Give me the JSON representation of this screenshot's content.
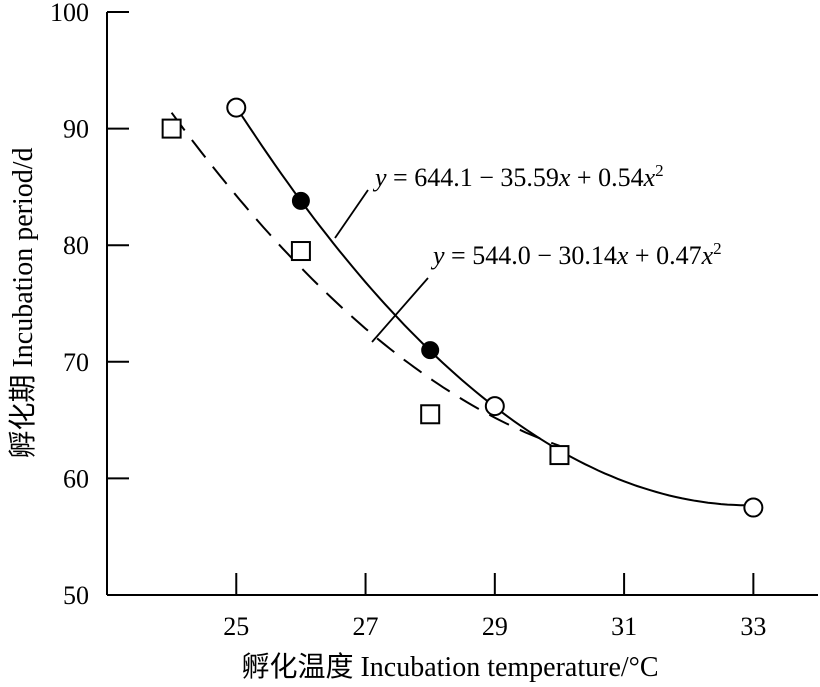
{
  "chart_data": {
    "type": "scatter",
    "xlabel": "孵化温度 Incubation temperature/°C",
    "ylabel": "孵化期 Incubation period/d",
    "xlim": [
      23,
      34
    ],
    "ylim": [
      50,
      100
    ],
    "x_ticks": [
      25,
      27,
      29,
      31,
      33
    ],
    "y_ticks": [
      50,
      60,
      70,
      80,
      90,
      100
    ],
    "grid": false,
    "series": [
      {
        "marker": "open-circle",
        "points": [
          [
            25,
            91.8
          ],
          [
            29,
            66.2
          ],
          [
            33,
            57.5
          ]
        ]
      },
      {
        "marker": "filled-circle",
        "points": [
          [
            26,
            83.8
          ],
          [
            28,
            71.0
          ]
        ]
      },
      {
        "marker": "open-square",
        "points": [
          [
            24,
            90.0
          ],
          [
            26,
            79.5
          ],
          [
            28,
            65.5
          ],
          [
            30,
            62.0
          ]
        ]
      }
    ],
    "fits": [
      {
        "style": "solid",
        "equation_parts": [
          "y",
          " = 644.1 − 35.59",
          "x",
          " + 0.54",
          "x",
          "2"
        ],
        "coefficients": [
          644.1,
          -35.59,
          0.54
        ],
        "x_range": [
          25,
          33
        ]
      },
      {
        "style": "dashed",
        "equation_parts": [
          "y",
          " = 544.0 − 30.14",
          "x",
          " + 0.47",
          "x",
          "2"
        ],
        "coefficients": [
          544.0,
          -30.14,
          0.47
        ],
        "x_range": [
          24,
          30
        ]
      }
    ]
  }
}
